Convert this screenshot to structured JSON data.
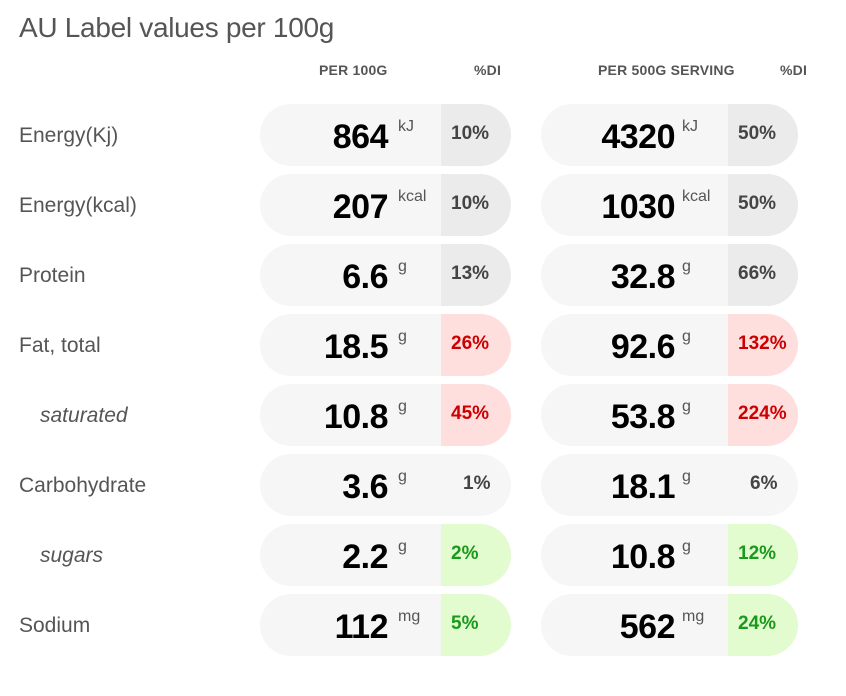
{
  "title": "AU Label values per 100g",
  "headers": {
    "per100": "PER 100G",
    "di1": "%DI",
    "perServing": "PER 500G SERVING",
    "di2": "%DI"
  },
  "rows": [
    {
      "label": "Energy(Kj)",
      "sub": false,
      "v1": "864",
      "u1": "kJ",
      "p1": "10%",
      "c1": "neutral",
      "v2": "4320",
      "u2": "kJ",
      "p2": "50%",
      "c2": "neutral"
    },
    {
      "label": "Energy(kcal)",
      "sub": false,
      "v1": "207",
      "u1": "kcal",
      "p1": "10%",
      "c1": "neutral",
      "v2": "1030",
      "u2": "kcal",
      "p2": "50%",
      "c2": "neutral"
    },
    {
      "label": "Protein",
      "sub": false,
      "v1": "6.6",
      "u1": "g",
      "p1": "13%",
      "c1": "neutral",
      "v2": "32.8",
      "u2": "g",
      "p2": "66%",
      "c2": "neutral"
    },
    {
      "label": "Fat, total",
      "sub": false,
      "v1": "18.5",
      "u1": "g",
      "p1": "26%",
      "c1": "high",
      "v2": "92.6",
      "u2": "g",
      "p2": "132%",
      "c2": "high"
    },
    {
      "label": "saturated",
      "sub": true,
      "v1": "10.8",
      "u1": "g",
      "p1": "45%",
      "c1": "high",
      "v2": "53.8",
      "u2": "g",
      "p2": "224%",
      "c2": "high"
    },
    {
      "label": "Carbohydrate",
      "sub": false,
      "v1": "3.6",
      "u1": "g",
      "p1": "1%",
      "c1": "plain",
      "v2": "18.1",
      "u2": "g",
      "p2": "6%",
      "c2": "plain"
    },
    {
      "label": "sugars",
      "sub": true,
      "v1": "2.2",
      "u1": "g",
      "p1": "2%",
      "c1": "low",
      "v2": "10.8",
      "u2": "g",
      "p2": "12%",
      "c2": "low"
    },
    {
      "label": "Sodium",
      "sub": false,
      "v1": "112",
      "u1": "mg",
      "p1": "5%",
      "c1": "low",
      "v2": "562",
      "u2": "mg",
      "p2": "24%",
      "c2": "low"
    }
  ]
}
